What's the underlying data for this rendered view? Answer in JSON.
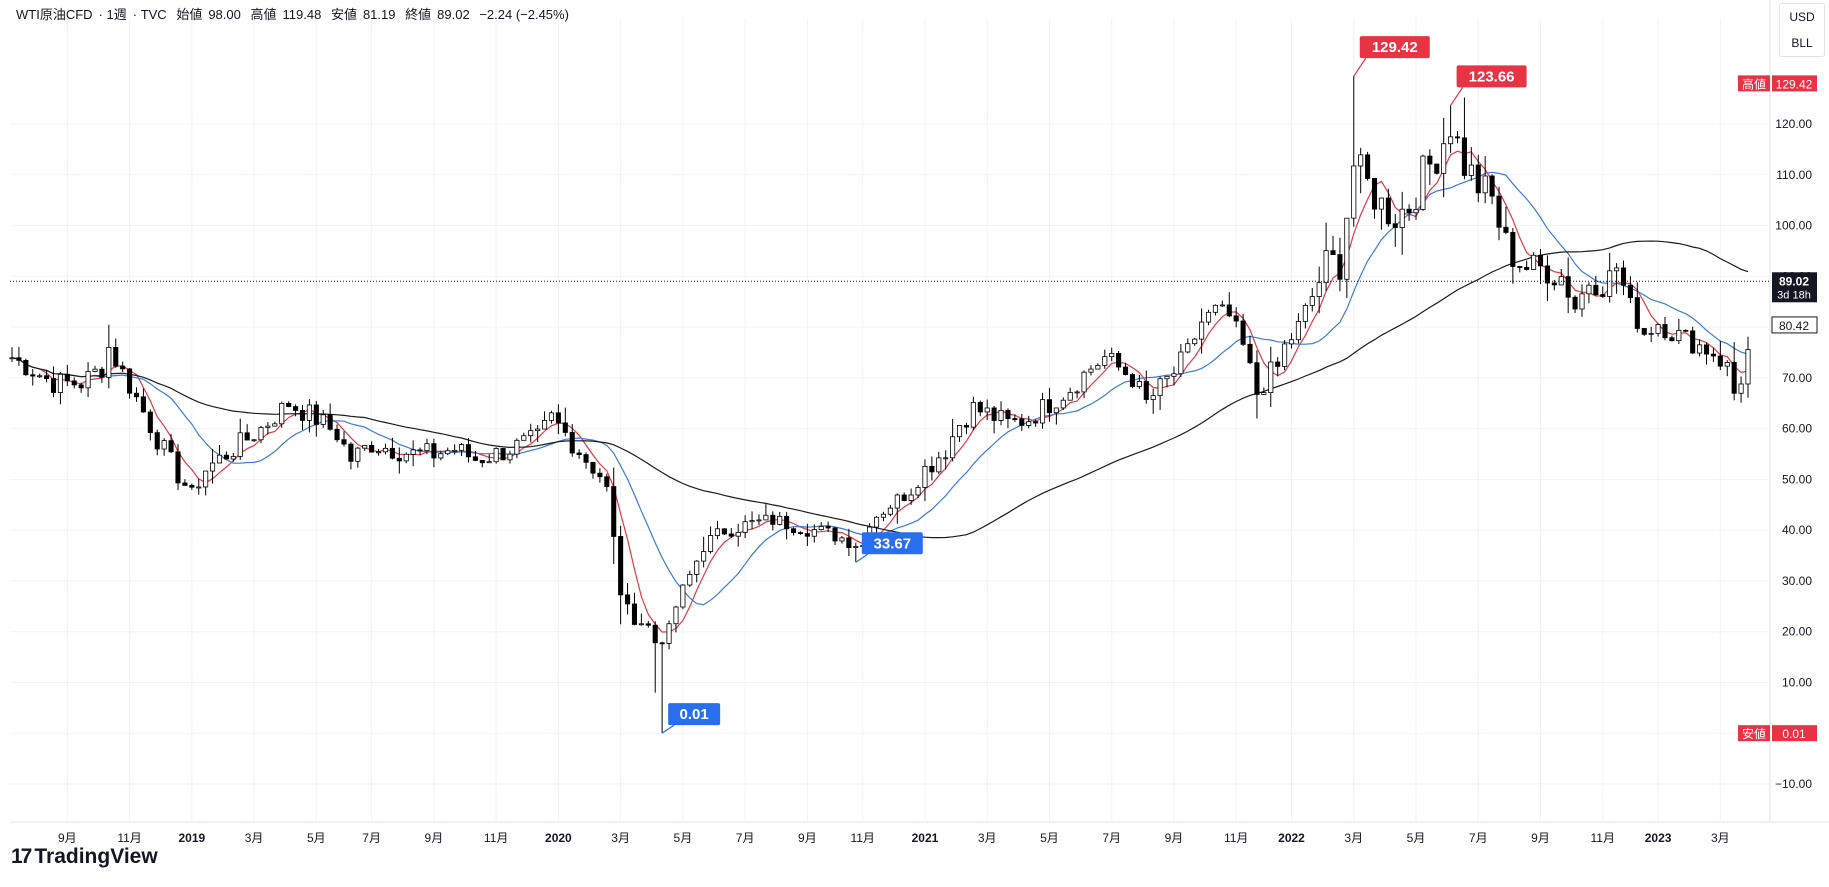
{
  "header": {
    "symbol": "WTI原油CFD",
    "interval": "1週",
    "source": "TVC",
    "open_label": "始値",
    "open": "98.00",
    "high_label": "高値",
    "high": "119.48",
    "low_label": "安値",
    "low": "81.19",
    "close_label": "終値",
    "close": "89.02",
    "change": "−2.24 (−2.45%)"
  },
  "unit_buttons": {
    "currency": "USD",
    "unit": "BLL"
  },
  "branding": {
    "logo_mark": "17",
    "logo_text": "TradingView"
  },
  "colors": {
    "up_candle": "#ffffff",
    "down_candle": "#000000",
    "ma_short": "#e53945",
    "ma_mid": "#3d7bd8",
    "ma_long": "#1c1c1c",
    "high_flag": "#e73344",
    "low_flag": "#2a6ef0"
  },
  "chart_data": {
    "type": "candlestick",
    "title": "",
    "ylim": [
      -13,
      143
    ],
    "y_ticks": [
      "120.00",
      "110.00",
      "100.00",
      "90.00",
      "80.00",
      "70.00",
      "60.00",
      "50.00",
      "40.00",
      "30.00",
      "20.00",
      "10.00",
      "0.00",
      "−10.00"
    ],
    "x_ticks": [
      {
        "label": "9月",
        "week": 8
      },
      {
        "label": "11月",
        "week": 17
      },
      {
        "label": "2019",
        "week": 26,
        "bold": true
      },
      {
        "label": "3月",
        "week": 35
      },
      {
        "label": "5月",
        "week": 44
      },
      {
        "label": "7月",
        "week": 52
      },
      {
        "label": "9月",
        "week": 61
      },
      {
        "label": "11月",
        "week": 70
      },
      {
        "label": "2020",
        "week": 79,
        "bold": true
      },
      {
        "label": "3月",
        "week": 88
      },
      {
        "label": "5月",
        "week": 97
      },
      {
        "label": "7月",
        "week": 106
      },
      {
        "label": "9月",
        "week": 115
      },
      {
        "label": "11月",
        "week": 123
      },
      {
        "label": "2021",
        "week": 132,
        "bold": true
      },
      {
        "label": "3月",
        "week": 141
      },
      {
        "label": "5月",
        "week": 150
      },
      {
        "label": "7月",
        "week": 159
      },
      {
        "label": "9月",
        "week": 168
      },
      {
        "label": "11月",
        "week": 177
      },
      {
        "label": "2022",
        "week": 185,
        "bold": true
      },
      {
        "label": "3月",
        "week": 194
      },
      {
        "label": "5月",
        "week": 203
      },
      {
        "label": "7月",
        "week": 212
      },
      {
        "label": "9月",
        "week": 221
      },
      {
        "label": "11月",
        "week": 230
      },
      {
        "label": "2023",
        "week": 238,
        "bold": true
      },
      {
        "label": "3月",
        "week": 247
      }
    ],
    "price_anchors": [
      [
        0,
        74
      ],
      [
        6,
        69
      ],
      [
        10,
        69
      ],
      [
        13,
        72
      ],
      [
        14,
        76
      ],
      [
        16,
        71
      ],
      [
        18,
        66
      ],
      [
        21,
        58
      ],
      [
        24,
        51
      ],
      [
        26,
        47
      ],
      [
        28,
        52
      ],
      [
        32,
        56
      ],
      [
        36,
        60
      ],
      [
        40,
        65
      ],
      [
        44,
        62
      ],
      [
        47,
        59
      ],
      [
        49,
        54
      ],
      [
        52,
        57
      ],
      [
        55,
        56
      ],
      [
        58,
        55
      ],
      [
        61,
        55
      ],
      [
        64,
        56
      ],
      [
        67,
        54
      ],
      [
        70,
        55
      ],
      [
        74,
        57
      ],
      [
        76,
        58
      ],
      [
        78,
        62
      ],
      [
        80,
        59
      ],
      [
        83,
        54
      ],
      [
        85,
        51
      ],
      [
        86,
        48
      ],
      [
        87,
        38
      ],
      [
        88,
        28
      ],
      [
        89,
        24
      ],
      [
        92,
        21
      ],
      [
        93,
        18
      ],
      [
        95,
        20
      ],
      [
        96,
        25
      ],
      [
        98,
        31
      ],
      [
        100,
        37
      ],
      [
        103,
        40
      ],
      [
        106,
        41
      ],
      [
        110,
        42
      ],
      [
        113,
        41
      ],
      [
        116,
        40
      ],
      [
        119,
        39
      ],
      [
        121,
        38
      ],
      [
        123,
        37
      ],
      [
        124,
        42
      ],
      [
        127,
        45
      ],
      [
        130,
        48
      ],
      [
        132,
        52
      ],
      [
        135,
        56
      ],
      [
        137,
        61
      ],
      [
        139,
        64
      ],
      [
        141,
        63
      ],
      [
        144,
        61
      ],
      [
        147,
        62
      ],
      [
        150,
        65
      ],
      [
        153,
        68
      ],
      [
        156,
        72
      ],
      [
        158,
        74
      ],
      [
        160,
        72
      ],
      [
        162,
        70
      ],
      [
        164,
        65
      ],
      [
        166,
        68
      ],
      [
        168,
        71
      ],
      [
        170,
        75
      ],
      [
        172,
        81
      ],
      [
        174,
        83
      ],
      [
        176,
        82
      ],
      [
        178,
        76
      ],
      [
        180,
        67
      ],
      [
        182,
        71
      ],
      [
        183,
        72
      ],
      [
        184,
        76
      ],
      [
        186,
        80
      ],
      [
        188,
        86
      ],
      [
        190,
        92
      ],
      [
        192,
        93
      ],
      [
        194,
        112
      ],
      [
        196,
        108
      ],
      [
        198,
        104
      ],
      [
        200,
        102
      ],
      [
        202,
        104
      ],
      [
        204,
        110
      ],
      [
        206,
        114
      ],
      [
        208,
        120
      ],
      [
        210,
        112
      ],
      [
        212,
        108
      ],
      [
        214,
        105
      ],
      [
        216,
        96
      ],
      [
        218,
        93
      ],
      [
        220,
        91
      ],
      [
        222,
        92
      ],
      [
        224,
        90
      ],
      [
        226,
        84
      ],
      [
        228,
        89
      ],
      [
        230,
        88
      ],
      [
        232,
        92
      ],
      [
        234,
        84
      ],
      [
        236,
        79
      ],
      [
        238,
        81
      ],
      [
        240,
        79
      ],
      [
        243,
        77
      ],
      [
        246,
        75
      ],
      [
        248,
        72
      ],
      [
        249,
        67
      ],
      [
        250,
        70
      ],
      [
        251,
        75
      ]
    ],
    "weeks": 252,
    "series": [
      {
        "name": "",
        "type": "ma",
        "period": 5
      },
      {
        "name": "",
        "type": "ma",
        "period": 13
      },
      {
        "name": "",
        "type": "ma",
        "period": 52
      }
    ],
    "annotations": [
      {
        "label": "129.42",
        "week": 194,
        "price": 129.42,
        "kind": "high"
      },
      {
        "label": "123.66",
        "week": 208,
        "price": 123.66,
        "kind": "high"
      },
      {
        "label": "33.67",
        "week": 122,
        "price": 33.67,
        "kind": "low"
      },
      {
        "label": "0.01",
        "week": 94,
        "price": 0.01,
        "kind": "low"
      }
    ],
    "price_tags": [
      {
        "prefix": "高値",
        "value": "129.42",
        "price": 128,
        "style": "red"
      },
      {
        "prefix": "",
        "value": "89.02",
        "sub": "3d 18h",
        "price": 89.02,
        "style": "black"
      },
      {
        "prefix": "",
        "value": "80.42",
        "price": 80.42,
        "style": "outline"
      },
      {
        "prefix": "安値",
        "value": "0.01",
        "price": 0.01,
        "style": "red"
      }
    ],
    "last_price": 89.02
  }
}
